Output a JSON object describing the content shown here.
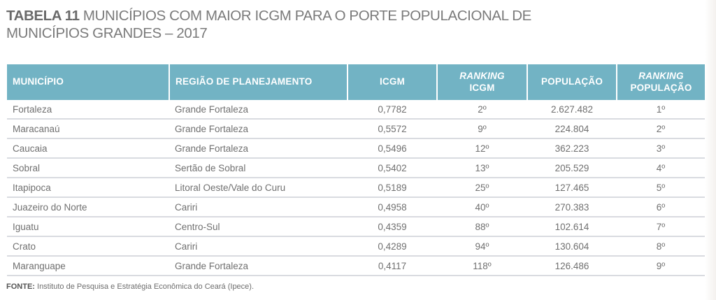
{
  "title": {
    "label": "TABELA 11",
    "text": " MUNICÍPIOS COM MAIOR ICGM PARA O PORTE POPULACIONAL DE MUNICÍPIOS GRANDES – 2017"
  },
  "table": {
    "headers": {
      "municipio": "MUNICÍPIO",
      "regiao": "REGIÃO DE PLANEJAMENTO",
      "icgm": "ICGM",
      "ranking_icgm_top": "RANKING",
      "ranking_icgm_bottom": "ICGM",
      "populacao": "POPULAÇÃO",
      "ranking_pop_top": "RANKING",
      "ranking_pop_bottom": "POPULAÇÃO"
    },
    "rows": [
      {
        "municipio": "Fortaleza",
        "regiao": "Grande Fortaleza",
        "icgm": "0,7782",
        "ranking_icgm": "2º",
        "populacao": "2.627.482",
        "ranking_pop": "1º"
      },
      {
        "municipio": "Maracanaú",
        "regiao": "Grande Fortaleza",
        "icgm": "0,5572",
        "ranking_icgm": "9º",
        "populacao": "224.804",
        "ranking_pop": "2º"
      },
      {
        "municipio": "Caucaia",
        "regiao": "Grande Fortaleza",
        "icgm": "0,5496",
        "ranking_icgm": "12º",
        "populacao": "362.223",
        "ranking_pop": "3º"
      },
      {
        "municipio": "Sobral",
        "regiao": "Sertão de Sobral",
        "icgm": "0,5402",
        "ranking_icgm": "13º",
        "populacao": "205.529",
        "ranking_pop": "4º"
      },
      {
        "municipio": "Itapipoca",
        "regiao": "Litoral Oeste/Vale do Curu",
        "icgm": "0,5189",
        "ranking_icgm": "25º",
        "populacao": "127.465",
        "ranking_pop": "5º"
      },
      {
        "municipio": "Juazeiro do Norte",
        "regiao": "Cariri",
        "icgm": "0,4958",
        "ranking_icgm": "40º",
        "populacao": "270.383",
        "ranking_pop": "6º"
      },
      {
        "municipio": "Iguatu",
        "regiao": "Centro-Sul",
        "icgm": "0,4359",
        "ranking_icgm": "88º",
        "populacao": "102.614",
        "ranking_pop": "7º"
      },
      {
        "municipio": "Crato",
        "regiao": "Cariri",
        "icgm": "0,4289",
        "ranking_icgm": "94º",
        "populacao": "130.604",
        "ranking_pop": "8º"
      },
      {
        "municipio": "Maranguape",
        "regiao": "Grande Fortaleza",
        "icgm": "0,4117",
        "ranking_icgm": "118º",
        "populacao": "126.486",
        "ranking_pop": "9º"
      }
    ]
  },
  "source": {
    "label": "FONTE:",
    "text": " Instituto de Pesquisa e Estratégia Econômica do Ceará (Ipece)."
  },
  "colors": {
    "header_bg": "#72b3c4",
    "header_text": "#ffffff",
    "row_divider": "#d9dbe0",
    "body_text": "#707070"
  }
}
